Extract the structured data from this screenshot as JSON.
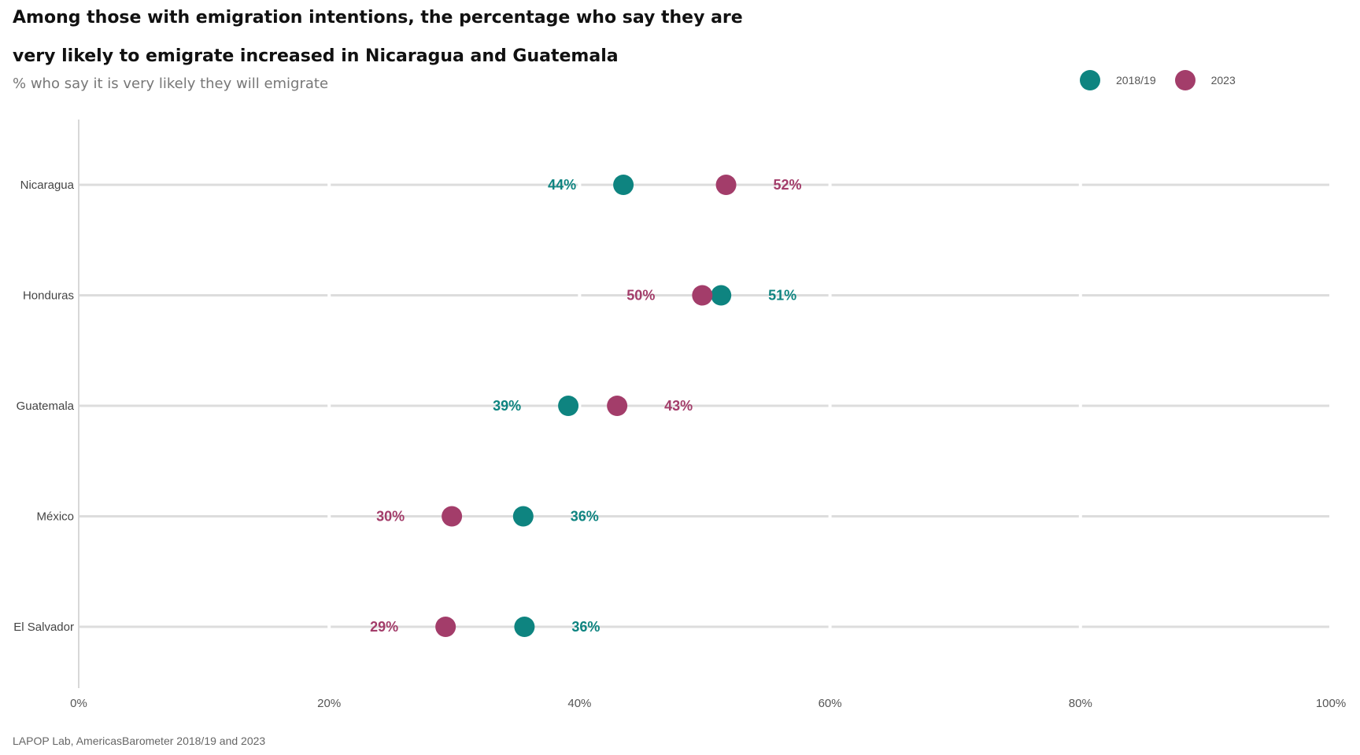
{
  "colors": {
    "series_2018": "#0e8480",
    "series_2023": "#a33d6a",
    "grid": "#dddddd",
    "axis": "#cccccc"
  },
  "chart_data": {
    "type": "scatter",
    "title_line1": "Among those with emigration intentions, the percentage who say they are",
    "title_line2": "very likely to emigrate increased in Nicaragua and Guatemala",
    "subtitle": "% who say it is very likely they will emigrate",
    "source": "LAPOP Lab, AmericasBarometer 2018/19 and 2023",
    "xlim": [
      0,
      100
    ],
    "x_ticks": [
      0,
      20,
      40,
      60,
      80,
      100
    ],
    "x_tick_labels": [
      "0%",
      "20%",
      "40%",
      "60%",
      "80%",
      "100%"
    ],
    "legend": [
      {
        "name": "2018/19",
        "color": "#0e8480"
      },
      {
        "name": "2023",
        "color": "#a33d6a"
      }
    ],
    "categories": [
      "Nicaragua",
      "Honduras",
      "Guatemala",
      "México",
      "El Salvador"
    ],
    "series": [
      {
        "name": "2018/19",
        "color": "#0e8480",
        "values": [
          43.5,
          51.3,
          39.1,
          35.5,
          35.6
        ],
        "labels": [
          "44%",
          "51%",
          "39%",
          "36%",
          "36%"
        ]
      },
      {
        "name": "2023",
        "color": "#a33d6a",
        "values": [
          51.7,
          49.8,
          43.0,
          29.8,
          29.3
        ],
        "labels": [
          "52%",
          "50%",
          "43%",
          "30%",
          "29%"
        ]
      }
    ]
  }
}
